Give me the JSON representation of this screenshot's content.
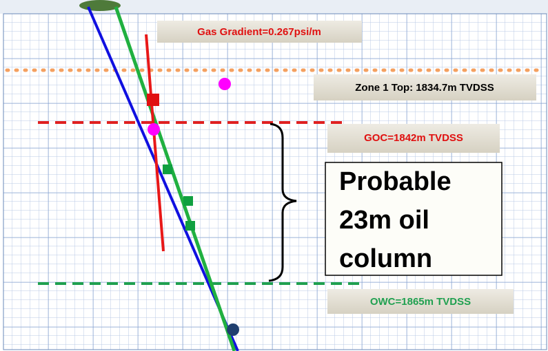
{
  "annotations": {
    "gas_gradient": "Gas Gradient=0.267psi/m",
    "zone_top": "Zone 1 Top: 1834.7m TVDSS",
    "goc": "GOC=1842m TVDSS",
    "oil_column": [
      "Probable",
      "23m oil",
      "column"
    ],
    "owc": "OWC=1865m TVDSS"
  }
}
